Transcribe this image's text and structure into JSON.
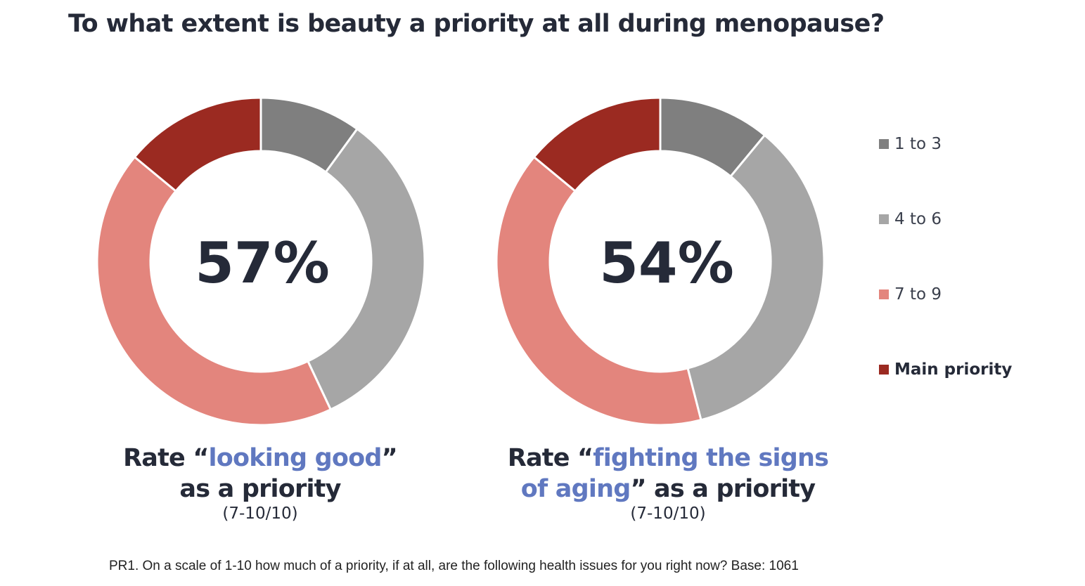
{
  "title": "To what extent is beauty a priority at all during menopause?",
  "colors": {
    "1 to 3": "#7f7f7f",
    "4 to 6": "#a6a6a6",
    "7 to 9": "#e3857d",
    "Main priority": "#9b2a21"
  },
  "chart_data": [
    {
      "type": "pie",
      "variant": "donut",
      "center_label": "57%",
      "categories": [
        "1 to 3",
        "4 to 6",
        "7 to 9",
        "Main priority"
      ],
      "values": [
        10,
        33,
        43,
        14
      ],
      "caption": {
        "prefix": "Rate “",
        "highlight": "looking good",
        "line1_suffix": "”",
        "line2": "as a priority",
        "scale": "(7-10/10)"
      }
    },
    {
      "type": "pie",
      "variant": "donut",
      "center_label": "54%",
      "categories": [
        "1 to 3",
        "4 to 6",
        "7 to 9",
        "Main priority"
      ],
      "values": [
        11,
        35,
        40,
        14
      ],
      "caption": {
        "prefix": "Rate “",
        "highlight1": "fighting the signs",
        "highlight2": "of aging",
        "line2_suffix": "” as a priority",
        "scale": "(7-10/10)"
      }
    }
  ],
  "legend": [
    {
      "label": "1 to 3",
      "bold": false
    },
    {
      "label": "4 to 6",
      "bold": false
    },
    {
      "label": "7 to 9",
      "bold": false
    },
    {
      "label": "Main priority",
      "bold": true
    }
  ],
  "footnote": "PR1. On a scale of 1-10 how much of a priority, if at all, are the following health issues for you right now? Base: 1061"
}
